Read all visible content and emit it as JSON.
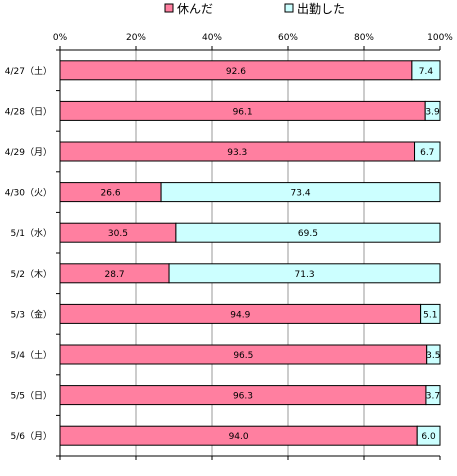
{
  "chart_data": {
    "type": "bar",
    "orientation": "horizontal",
    "stacked": true,
    "categories": [
      "4/27（土）",
      "4/28（日）",
      "4/29（月）",
      "4/30（火）",
      "5/1（水）",
      "5/2（木）",
      "5/3（金）",
      "5/4（土）",
      "5/5（日）",
      "5/6（月）"
    ],
    "series": [
      {
        "name": "休んだ",
        "color": "#ff7fa0",
        "values": [
          92.6,
          96.1,
          93.3,
          26.6,
          30.5,
          28.7,
          94.9,
          96.5,
          96.3,
          94.0
        ],
        "labels": [
          "92.6",
          "96.1",
          "93.3",
          "26.6",
          "30.5",
          "28.7",
          "94.9",
          "96.5",
          "96.3",
          "94.0"
        ]
      },
      {
        "name": "出勤した",
        "color": "#ccffff",
        "values": [
          7.4,
          3.9,
          6.7,
          73.4,
          69.5,
          71.3,
          5.1,
          3.5,
          3.7,
          6.0
        ],
        "labels": [
          "7.4",
          "3.9",
          "6.7",
          "73.4",
          "69.5",
          "71.3",
          "5.1",
          "3.5",
          "3.7",
          "6.0"
        ]
      }
    ],
    "x_ticks": [
      "0%",
      "20%",
      "40%",
      "60%",
      "80%",
      "100%"
    ],
    "xlim": [
      0,
      100
    ],
    "grid": true,
    "legend_position": "top-center"
  }
}
